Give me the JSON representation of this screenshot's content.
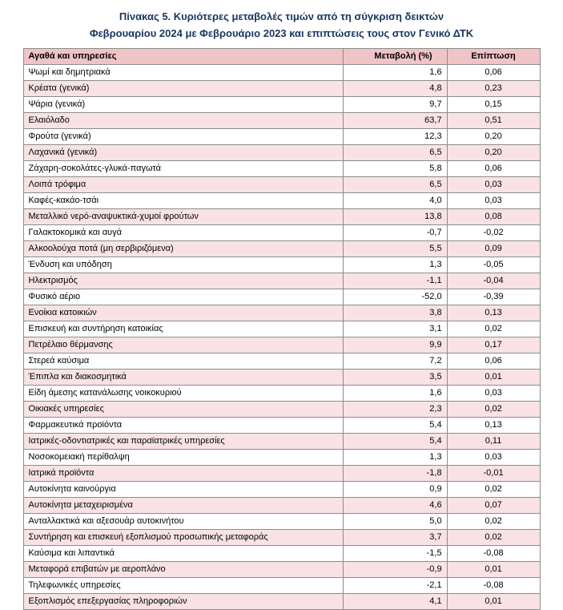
{
  "title": {
    "line1": "Πίνακας  5. Κυριότερες μεταβολές τιμών από τη σύγκριση δεικτών",
    "line2": "Φεβρουαρίου 2024 με Φεβρουάριο 2023 και επιπτώσεις τους στον Γενικό ΔΤΚ"
  },
  "colors": {
    "header_bg": "#f0c3c7",
    "row_alt_bg": "#f8e2e4",
    "title_color": "#17365d",
    "border": "#8c8c8c"
  },
  "table": {
    "headers": [
      "Αγαθά και υπηρεσίες",
      "Μεταβολή (%)",
      "Επίπτωση"
    ],
    "rows": [
      [
        "Ψωμί και δημητριακά",
        "1,6",
        "0,06"
      ],
      [
        "Κρέατα (γενικά)",
        "4,8",
        "0,23"
      ],
      [
        "Ψάρια (γενικά)",
        "9,7",
        "0,15"
      ],
      [
        "Ελαιόλαδο",
        "63,7",
        "0,51"
      ],
      [
        "Φρούτα (γενικά)",
        "12,3",
        "0,20"
      ],
      [
        "Λαχανικά (γενικά)",
        "6,5",
        "0,20"
      ],
      [
        "Ζάχαρη-σοκολάτες-γλυκά-παγωτά",
        "5,8",
        "0,06"
      ],
      [
        "Λοιπά τρόφιμα",
        "6,5",
        "0,03"
      ],
      [
        "Καφές-κακάο-τσάι",
        "4,0",
        "0,03"
      ],
      [
        "Μεταλλικό νερό-αναψυκτικά-χυμοί φρούτων",
        "13,8",
        "0,08"
      ],
      [
        "Γαλακτοκομικά και αυγά",
        "-0,7",
        "-0,02"
      ],
      [
        "Αλκοολούχα ποτά (μη σερβιριζόμενα)",
        "5,5",
        "0,09"
      ],
      [
        "Ένδυση και υπόδηση",
        "1,3",
        "-0,05"
      ],
      [
        "Ηλεκτρισμός",
        "-1,1",
        "-0,04"
      ],
      [
        "Φυσικό αέριο",
        "-52,0",
        "-0,39"
      ],
      [
        "Ενοίκια κατοικιών",
        "3,8",
        "0,13"
      ],
      [
        "Επισκευή και συντήρηση κατοικίας",
        "3,1",
        "0,02"
      ],
      [
        "Πετρέλαιο θέρμανσης",
        "9,9",
        "0,17"
      ],
      [
        "Στερεά καύσιμα",
        "7,2",
        "0,06"
      ],
      [
        "Έπιπλα και διακοσμητικά",
        "3,5",
        "0,01"
      ],
      [
        "Είδη άμεσης κατανάλωσης νοικοκυριού",
        "1,6",
        "0,03"
      ],
      [
        "Οικιακές υπηρεσίες",
        "2,3",
        "0,02"
      ],
      [
        "Φαρμακευτικά προϊόντα",
        "5,4",
        "0,13"
      ],
      [
        "Ιατρικές-οδοντιατρικές και παραϊατρικές υπηρεσίες",
        "5,4",
        "0,11"
      ],
      [
        "Νοσοκομειακή περίθαλψη",
        "1,3",
        "0,03"
      ],
      [
        "Ιατρικά προϊόντα",
        "-1,8",
        "-0,01"
      ],
      [
        "Αυτοκίνητα καινούργια",
        "0,9",
        "0,02"
      ],
      [
        "Αυτοκίνητα μεταχειρισμένα",
        "4,6",
        "0,07"
      ],
      [
        "Ανταλλακτικά και αξεσουάρ αυτοκινήτου",
        "5,0",
        "0,02"
      ],
      [
        "Συντήρηση και επισκευή εξοπλισμού προσωπικής μεταφοράς",
        "3,7",
        "0,02"
      ],
      [
        "Καύσιμα και λιπαντικά",
        "-1,5",
        "-0,08"
      ],
      [
        "Μεταφορά επιβατών με αεροπλάνο",
        "-0,9",
        "0,01"
      ],
      [
        "Τηλεφωνικές υπηρεσίες",
        "-2,1",
        "-0,08"
      ],
      [
        "Εξοπλισμός επεξεργασίας πληροφοριών",
        "4,1",
        "0,01"
      ]
    ]
  }
}
